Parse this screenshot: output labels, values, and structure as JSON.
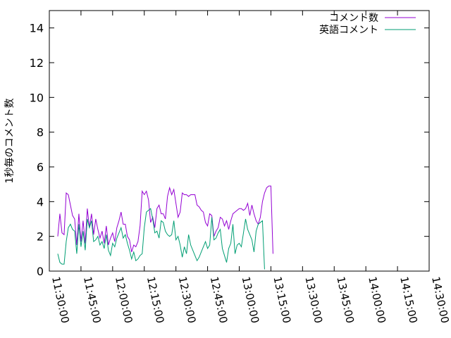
{
  "chart_data": {
    "type": "line",
    "ylabel": "1秒毎のコメント数",
    "xlabel": "",
    "ylim": [
      0,
      15
    ],
    "yticks": [
      0,
      2,
      4,
      6,
      8,
      10,
      12,
      14
    ],
    "xlim": [
      "11:30:00",
      "14:30:00"
    ],
    "xticks": [
      "11:30:00",
      "11:45:00",
      "12:00:00",
      "12:15:00",
      "12:30:00",
      "12:45:00",
      "13:00:00",
      "13:15:00",
      "13:30:00",
      "13:45:00",
      "14:00:00",
      "14:15:00",
      "14:30:00"
    ],
    "grid": false,
    "legend_position": "top-right",
    "series": [
      {
        "name": "コメント数",
        "color": "#9400d3",
        "points": [
          [
            "11:34:00",
            2.0
          ],
          [
            "11:35:00",
            3.3
          ],
          [
            "11:36:00",
            2.2
          ],
          [
            "11:37:00",
            2.1
          ],
          [
            "11:38:00",
            4.5
          ],
          [
            "11:39:00",
            4.4
          ],
          [
            "11:40:00",
            3.8
          ],
          [
            "11:41:00",
            3.2
          ],
          [
            "11:42:00",
            3.0
          ],
          [
            "11:43:00",
            1.5
          ],
          [
            "11:44:00",
            3.3
          ],
          [
            "11:45:00",
            1.7
          ],
          [
            "11:46:00",
            2.9
          ],
          [
            "11:47:00",
            1.6
          ],
          [
            "11:48:00",
            3.6
          ],
          [
            "11:49:00",
            2.5
          ],
          [
            "11:50:00",
            3.3
          ],
          [
            "11:51:00",
            2.1
          ],
          [
            "11:52:00",
            3.0
          ],
          [
            "11:53:00",
            2.4
          ],
          [
            "11:54:00",
            1.9
          ],
          [
            "11:55:00",
            2.3
          ],
          [
            "11:56:00",
            1.6
          ],
          [
            "11:57:00",
            2.6
          ],
          [
            "11:58:00",
            1.5
          ],
          [
            "11:59:00",
            1.9
          ],
          [
            "12:00:00",
            2.2
          ],
          [
            "12:01:00",
            1.7
          ],
          [
            "12:02:00",
            2.5
          ],
          [
            "12:03:00",
            2.9
          ],
          [
            "12:04:00",
            3.4
          ],
          [
            "12:05:00",
            2.7
          ],
          [
            "12:06:00",
            2.7
          ],
          [
            "12:07:00",
            2.0
          ],
          [
            "12:08:00",
            1.8
          ],
          [
            "12:09:00",
            1.1
          ],
          [
            "12:10:00",
            1.5
          ],
          [
            "12:11:00",
            1.4
          ],
          [
            "12:12:00",
            1.7
          ],
          [
            "12:13:00",
            2.6
          ],
          [
            "12:14:00",
            4.6
          ],
          [
            "12:15:00",
            4.4
          ],
          [
            "12:16:00",
            4.6
          ],
          [
            "12:17:00",
            4.1
          ],
          [
            "12:18:00",
            2.8
          ],
          [
            "12:19:00",
            3.1
          ],
          [
            "12:20:00",
            2.5
          ],
          [
            "12:21:00",
            3.6
          ],
          [
            "12:22:00",
            3.8
          ],
          [
            "12:23:00",
            3.3
          ],
          [
            "12:24:00",
            3.3
          ],
          [
            "12:25:00",
            3.0
          ],
          [
            "12:26:00",
            4.3
          ],
          [
            "12:27:00",
            4.8
          ],
          [
            "12:28:00",
            4.4
          ],
          [
            "12:29:00",
            4.7
          ],
          [
            "12:30:00",
            3.9
          ],
          [
            "12:31:00",
            3.1
          ],
          [
            "12:32:00",
            3.4
          ],
          [
            "12:33:00",
            4.5
          ],
          [
            "12:34:00",
            4.4
          ],
          [
            "12:35:00",
            4.4
          ],
          [
            "12:36:00",
            4.3
          ],
          [
            "12:37:00",
            4.4
          ],
          [
            "12:38:00",
            4.4
          ],
          [
            "12:39:00",
            4.4
          ],
          [
            "12:40:00",
            3.8
          ],
          [
            "12:41:00",
            3.7
          ],
          [
            "12:42:00",
            3.5
          ],
          [
            "12:43:00",
            3.4
          ],
          [
            "12:44:00",
            2.8
          ],
          [
            "12:45:00",
            2.6
          ],
          [
            "12:46:00",
            3.3
          ],
          [
            "12:47:00",
            3.2
          ],
          [
            "12:48:00",
            2.0
          ],
          [
            "12:49:00",
            2.3
          ],
          [
            "12:50:00",
            2.5
          ],
          [
            "12:51:00",
            3.1
          ],
          [
            "12:52:00",
            3.0
          ],
          [
            "12:53:00",
            2.6
          ],
          [
            "12:54:00",
            2.9
          ],
          [
            "12:55:00",
            2.4
          ],
          [
            "12:56:00",
            2.9
          ],
          [
            "12:57:00",
            3.3
          ],
          [
            "12:58:00",
            3.4
          ],
          [
            "12:59:00",
            3.5
          ],
          [
            "13:00:00",
            3.6
          ],
          [
            "13:01:00",
            3.6
          ],
          [
            "13:02:00",
            3.5
          ],
          [
            "13:03:00",
            3.6
          ],
          [
            "13:04:00",
            3.9
          ],
          [
            "13:05:00",
            3.2
          ],
          [
            "13:06:00",
            3.8
          ],
          [
            "13:07:00",
            3.3
          ],
          [
            "13:08:00",
            2.9
          ],
          [
            "13:09:00",
            2.7
          ],
          [
            "13:10:00",
            3.1
          ],
          [
            "13:11:00",
            4.0
          ],
          [
            "13:12:00",
            4.5
          ],
          [
            "13:13:00",
            4.8
          ],
          [
            "13:14:00",
            4.9
          ],
          [
            "13:15:00",
            4.9
          ],
          [
            "13:16:00",
            1.0
          ]
        ]
      },
      {
        "name": "英語コメント",
        "color": "#009e73",
        "points": [
          [
            "11:34:00",
            1.0
          ],
          [
            "11:35:00",
            0.5
          ],
          [
            "11:36:00",
            0.4
          ],
          [
            "11:37:00",
            0.4
          ],
          [
            "11:38:00",
            1.7
          ],
          [
            "11:39:00",
            2.5
          ],
          [
            "11:40:00",
            2.7
          ],
          [
            "11:41:00",
            2.4
          ],
          [
            "11:42:00",
            2.3
          ],
          [
            "11:43:00",
            1.0
          ],
          [
            "11:44:00",
            2.7
          ],
          [
            "11:45:00",
            1.4
          ],
          [
            "11:46:00",
            2.3
          ],
          [
            "11:47:00",
            1.2
          ],
          [
            "11:48:00",
            3.0
          ],
          [
            "11:49:00",
            2.5
          ],
          [
            "11:50:00",
            2.9
          ],
          [
            "11:51:00",
            1.7
          ],
          [
            "11:52:00",
            1.8
          ],
          [
            "11:53:00",
            2.0
          ],
          [
            "11:54:00",
            1.5
          ],
          [
            "11:55:00",
            1.7
          ],
          [
            "11:56:00",
            1.3
          ],
          [
            "11:57:00",
            2.1
          ],
          [
            "11:58:00",
            1.2
          ],
          [
            "11:59:00",
            0.9
          ],
          [
            "12:00:00",
            1.6
          ],
          [
            "12:01:00",
            1.4
          ],
          [
            "12:02:00",
            1.9
          ],
          [
            "12:03:00",
            2.2
          ],
          [
            "12:04:00",
            2.5
          ],
          [
            "12:05:00",
            1.9
          ],
          [
            "12:06:00",
            2.1
          ],
          [
            "12:07:00",
            1.6
          ],
          [
            "12:08:00",
            1.2
          ],
          [
            "12:09:00",
            0.7
          ],
          [
            "12:10:00",
            1.1
          ],
          [
            "12:11:00",
            0.6
          ],
          [
            "12:12:00",
            0.7
          ],
          [
            "12:13:00",
            0.9
          ],
          [
            "12:14:00",
            1.0
          ],
          [
            "12:15:00",
            2.5
          ],
          [
            "12:16:00",
            3.4
          ],
          [
            "12:17:00",
            3.5
          ],
          [
            "12:18:00",
            3.6
          ],
          [
            "12:19:00",
            3.0
          ],
          [
            "12:20:00",
            2.2
          ],
          [
            "12:21:00",
            2.3
          ],
          [
            "12:22:00",
            1.9
          ],
          [
            "12:23:00",
            2.9
          ],
          [
            "12:24:00",
            2.8
          ],
          [
            "12:25:00",
            2.3
          ],
          [
            "12:26:00",
            2.1
          ],
          [
            "12:27:00",
            2.0
          ],
          [
            "12:28:00",
            2.1
          ],
          [
            "12:29:00",
            2.9
          ],
          [
            "12:30:00",
            1.8
          ],
          [
            "12:31:00",
            2.0
          ],
          [
            "12:32:00",
            1.5
          ],
          [
            "12:33:00",
            0.8
          ],
          [
            "12:34:00",
            1.4
          ],
          [
            "12:35:00",
            1.0
          ],
          [
            "12:36:00",
            2.1
          ],
          [
            "12:37:00",
            1.5
          ],
          [
            "12:38:00",
            1.2
          ],
          [
            "12:39:00",
            0.9
          ],
          [
            "12:40:00",
            0.6
          ],
          [
            "12:41:00",
            0.8
          ],
          [
            "12:42:00",
            1.1
          ],
          [
            "12:43:00",
            1.4
          ],
          [
            "12:44:00",
            1.7
          ],
          [
            "12:45:00",
            1.3
          ],
          [
            "12:46:00",
            1.5
          ],
          [
            "12:47:00",
            3.1
          ],
          [
            "12:48:00",
            1.8
          ],
          [
            "12:49:00",
            1.9
          ],
          [
            "12:50:00",
            2.2
          ],
          [
            "12:51:00",
            2.4
          ],
          [
            "12:52:00",
            1.3
          ],
          [
            "12:53:00",
            0.9
          ],
          [
            "12:54:00",
            0.5
          ],
          [
            "12:55:00",
            1.3
          ],
          [
            "12:56:00",
            1.6
          ],
          [
            "12:57:00",
            2.7
          ],
          [
            "12:58:00",
            1.0
          ],
          [
            "12:59:00",
            1.5
          ],
          [
            "13:00:00",
            1.6
          ],
          [
            "13:01:00",
            1.4
          ],
          [
            "13:02:00",
            2.2
          ],
          [
            "13:03:00",
            3.0
          ],
          [
            "13:04:00",
            2.4
          ],
          [
            "13:05:00",
            2.1
          ],
          [
            "13:06:00",
            1.8
          ],
          [
            "13:07:00",
            1.1
          ],
          [
            "13:08:00",
            2.3
          ],
          [
            "13:09:00",
            2.7
          ],
          [
            "13:10:00",
            2.8
          ],
          [
            "13:11:00",
            2.9
          ],
          [
            "13:12:00",
            0.1
          ]
        ]
      }
    ]
  }
}
